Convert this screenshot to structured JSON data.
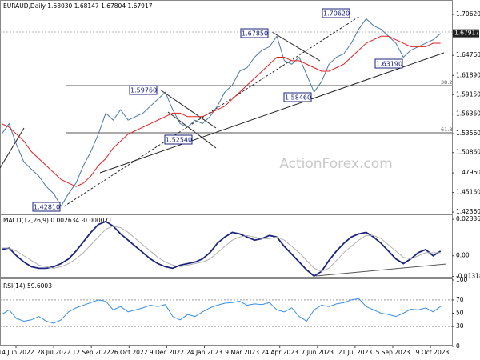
{
  "title": "EURAUD,Daily 1.68030 1.68147 1.67804 1.67917",
  "watermark": "ActionForex.com",
  "x_axis": {
    "labels": [
      "14 Jun 2022",
      "28 Jul 2022",
      "12 Sep 2022",
      "26 Oct 2022",
      "9 Dec 2022",
      "24 Jan 2023",
      "9 Mar 2023",
      "24 Apr 2023",
      "7 Jun 2023",
      "21 Jul 2023",
      "5 Sep 2023",
      "19 Oct 2023"
    ]
  },
  "chart_data": [
    {
      "type": "line",
      "ylim": [
        1.4202,
        1.7268
      ],
      "yticks": [
        {
          "value": 1.7062,
          "label": "1.70620"
        },
        {
          "value": 1.6476,
          "label": "1.64760"
        },
        {
          "value": 1.6189,
          "label": "1.61890"
        },
        {
          "value": 1.5915,
          "label": "1.59150"
        },
        {
          "value": 1.5636,
          "label": "1.56360"
        },
        {
          "value": 1.5356,
          "label": "1.53560"
        },
        {
          "value": 1.5086,
          "label": "1.50860"
        },
        {
          "value": 1.4796,
          "label": "1.47960"
        },
        {
          "value": 1.4516,
          "label": "1.45160"
        },
        {
          "value": 1.4236,
          "label": "1.42360"
        }
      ],
      "last_price": {
        "value": 1.67917,
        "label": "1.67917"
      },
      "annotations": [
        "1.70620",
        "1.67850",
        "1.59760",
        "1.58460",
        "1.63190",
        "1.52540",
        "1.42810",
        "38.2",
        "61.8"
      ],
      "series": [
        {
          "color": "#4a78a8",
          "values": [
            1.535,
            1.55,
            1.52,
            1.495,
            1.485,
            1.475,
            1.46,
            1.45,
            1.432,
            1.45,
            1.465,
            1.49,
            1.51,
            1.535,
            1.565,
            1.555,
            1.57,
            1.555,
            1.56,
            1.565,
            1.575,
            1.585,
            1.595,
            1.57,
            1.55,
            1.545,
            1.555,
            1.55,
            1.56,
            1.575,
            1.595,
            1.605,
            1.625,
            1.63,
            1.645,
            1.655,
            1.66,
            1.675,
            1.64,
            1.635,
            1.645,
            1.62,
            1.595,
            1.61,
            1.635,
            1.645,
            1.65,
            1.665,
            1.685,
            1.7,
            1.69,
            1.685,
            1.675,
            1.665,
            1.645,
            1.655,
            1.66,
            1.665,
            1.67,
            1.679
          ]
        },
        {
          "color": "#e02020",
          "values": [
            1.55,
            1.545,
            1.535,
            1.525,
            1.51,
            1.5,
            1.49,
            1.48,
            1.47,
            1.465,
            1.46,
            1.465,
            1.475,
            1.49,
            1.5,
            1.515,
            1.525,
            1.535,
            1.54,
            1.545,
            1.55,
            1.555,
            1.56,
            1.565,
            1.565,
            1.56,
            1.56,
            1.56,
            1.565,
            1.57,
            1.575,
            1.585,
            1.595,
            1.605,
            1.615,
            1.625,
            1.635,
            1.645,
            1.645,
            1.64,
            1.64,
            1.635,
            1.63,
            1.625,
            1.625,
            1.63,
            1.635,
            1.645,
            1.655,
            1.665,
            1.67,
            1.675,
            1.675,
            1.67,
            1.665,
            1.66,
            1.66,
            1.66,
            1.665,
            1.665
          ]
        }
      ]
    },
    {
      "type": "line",
      "title": "MACD(12,26,9) 0.002634 -0.000071",
      "ylim": [
        -0.0155,
        0.0265
      ],
      "yticks": [
        0.023366,
        {
          "value": 0,
          "label": "0.00"
        },
        -0.013186
      ],
      "series": [
        {
          "color": "#1a237e",
          "values": [
            0.004,
            0.005,
            0.0,
            -0.004,
            -0.007,
            -0.008,
            -0.008,
            -0.007,
            -0.005,
            -0.002,
            0.003,
            0.009,
            0.015,
            0.02,
            0.022,
            0.019,
            0.014,
            0.01,
            0.006,
            0.002,
            -0.002,
            -0.005,
            -0.007,
            -0.008,
            -0.006,
            -0.005,
            -0.004,
            -0.002,
            0.002,
            0.008,
            0.012,
            0.015,
            0.014,
            0.012,
            0.01,
            0.011,
            0.013,
            0.012,
            0.006,
            0.001,
            -0.004,
            -0.009,
            -0.013,
            -0.01,
            -0.003,
            0.003,
            0.008,
            0.012,
            0.014,
            0.015,
            0.012,
            0.008,
            0.003,
            -0.002,
            -0.005,
            -0.002,
            0.002,
            0.004,
            0.0,
            0.003
          ]
        },
        {
          "color": "#b0b0b0",
          "values": [
            0.005,
            0.005,
            0.003,
            0.0,
            -0.003,
            -0.006,
            -0.007,
            -0.008,
            -0.007,
            -0.005,
            -0.002,
            0.002,
            0.007,
            0.012,
            0.017,
            0.019,
            0.018,
            0.015,
            0.011,
            0.007,
            0.003,
            -0.001,
            -0.004,
            -0.006,
            -0.007,
            -0.006,
            -0.005,
            -0.004,
            -0.002,
            0.002,
            0.006,
            0.01,
            0.012,
            0.013,
            0.012,
            0.011,
            0.011,
            0.012,
            0.01,
            0.006,
            0.002,
            -0.003,
            -0.008,
            -0.01,
            -0.008,
            -0.003,
            0.002,
            0.006,
            0.01,
            0.013,
            0.013,
            0.011,
            0.007,
            0.003,
            -0.001,
            -0.002,
            0.0,
            0.002,
            0.002,
            0.002
          ]
        }
      ]
    },
    {
      "type": "line",
      "title": "RSI(14) 59.6003",
      "ylim": [
        0,
        100
      ],
      "yticks": [
        100,
        70,
        50,
        30,
        0
      ],
      "series": [
        {
          "color": "#3a8ee6",
          "values": [
            48,
            55,
            42,
            38,
            40,
            45,
            38,
            35,
            40,
            52,
            58,
            62,
            66,
            70,
            68,
            55,
            60,
            52,
            55,
            58,
            62,
            60,
            63,
            45,
            40,
            48,
            45,
            52,
            58,
            62,
            65,
            66,
            68,
            62,
            64,
            63,
            66,
            55,
            52,
            58,
            45,
            38,
            55,
            62,
            60,
            64,
            66,
            70,
            72,
            60,
            55,
            50,
            48,
            45,
            50,
            56,
            55,
            58,
            52,
            60
          ]
        }
      ]
    }
  ]
}
